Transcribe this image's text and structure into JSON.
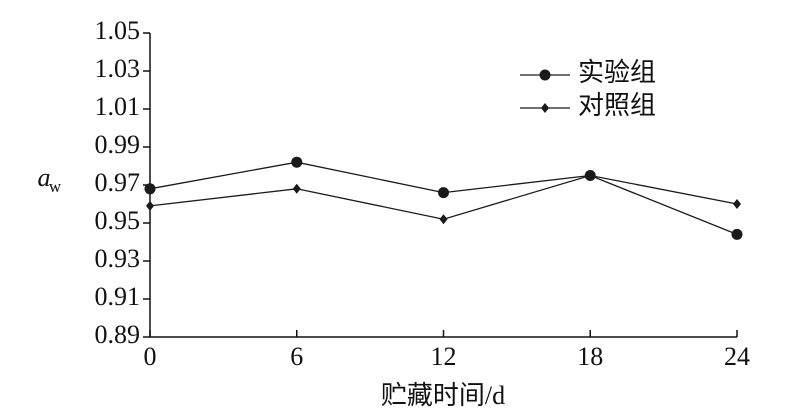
{
  "chart_data": {
    "type": "line",
    "ylabel": {
      "text": "a",
      "subscript": "w"
    },
    "xlabel": "贮藏时间/d",
    "x": [
      0,
      6,
      12,
      18,
      24
    ],
    "series": [
      {
        "name": "实验组",
        "color": "#1a1a1a",
        "marker": "circle",
        "values": [
          0.968,
          0.982,
          0.966,
          0.975,
          0.944
        ]
      },
      {
        "name": "对照组",
        "color": "#1a1a1a",
        "marker": "diamond",
        "values": [
          0.959,
          0.968,
          0.952,
          0.975,
          0.96
        ]
      }
    ],
    "xlim": [
      0,
      24
    ],
    "xticks": [
      0,
      6,
      12,
      18,
      24
    ],
    "ylim": [
      0.89,
      1.05
    ],
    "yticks": [
      0.89,
      0.91,
      0.93,
      0.95,
      0.97,
      0.99,
      1.01,
      1.03,
      1.05
    ],
    "legend": "upper right"
  }
}
